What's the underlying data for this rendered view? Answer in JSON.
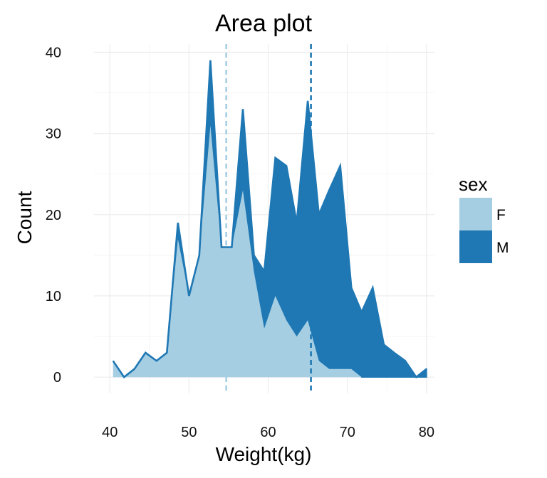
{
  "chart_data": {
    "type": "area",
    "title": "Area plot",
    "xlabel": "Weight(kg)",
    "ylabel": "Count",
    "xlim": [
      38,
      81
    ],
    "ylim": [
      -2,
      41
    ],
    "xticks": [
      40,
      50,
      60,
      70,
      80
    ],
    "yticks": [
      0,
      10,
      20,
      30,
      40
    ],
    "grid": true,
    "legend": {
      "title": "sex",
      "position": "right"
    },
    "x": [
      40.4,
      41.8,
      43.1,
      44.5,
      45.9,
      47.2,
      48.6,
      50.0,
      51.3,
      52.7,
      54.1,
      55.4,
      56.8,
      58.2,
      59.5,
      60.9,
      62.3,
      63.6,
      65.0,
      66.4,
      67.7,
      69.1,
      70.5,
      71.8,
      73.2,
      74.6,
      75.9,
      77.3,
      78.7,
      80.0
    ],
    "series": [
      {
        "name": "F",
        "color": "#a6cee3",
        "values": [
          2,
          0,
          1,
          3,
          2,
          3,
          17,
          10,
          15,
          31,
          16,
          16,
          23,
          13,
          6,
          10,
          7,
          5,
          7,
          2,
          1,
          1,
          1,
          0,
          0,
          0,
          0,
          0,
          0,
          0
        ]
      },
      {
        "name": "M",
        "color": "#1f78b4",
        "values": [
          0,
          0,
          0,
          0,
          0,
          0,
          2,
          0,
          0,
          8,
          0,
          0,
          10,
          2,
          7,
          17,
          19,
          14,
          27,
          18,
          22,
          25,
          10,
          8,
          11,
          4,
          3,
          2,
          0,
          1
        ]
      }
    ],
    "vlines": [
      {
        "series": "F",
        "x": 54.7,
        "color": "#a6cee3"
      },
      {
        "series": "M",
        "x": 65.4,
        "color": "#1f78b4"
      }
    ]
  }
}
